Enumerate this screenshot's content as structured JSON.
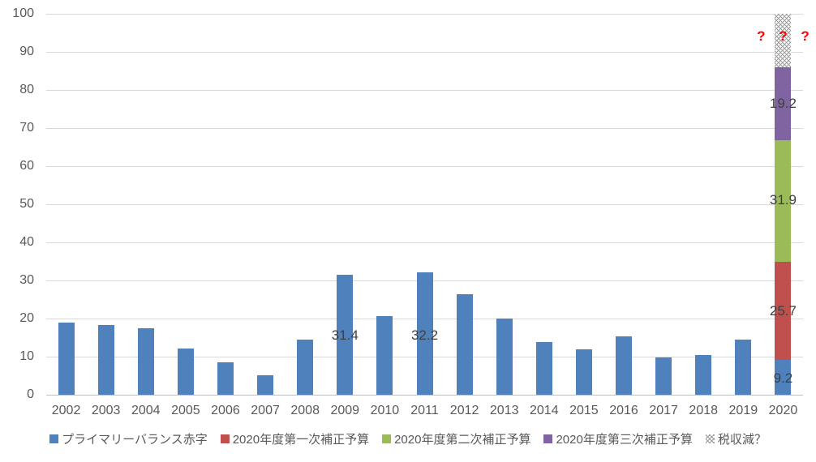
{
  "chart_data": {
    "type": "bar",
    "stacked": true,
    "title": "",
    "xlabel": "",
    "ylabel": "",
    "categories": [
      "2002",
      "2003",
      "2004",
      "2005",
      "2006",
      "2007",
      "2008",
      "2009",
      "2010",
      "2011",
      "2012",
      "2013",
      "2014",
      "2015",
      "2016",
      "2017",
      "2018",
      "2019",
      "2020"
    ],
    "series": [
      {
        "name": "プライマリーバランス赤字",
        "color": "#4F81BD",
        "values": [
          19.0,
          18.2,
          17.4,
          12.2,
          8.6,
          5.2,
          14.5,
          31.4,
          20.6,
          32.2,
          26.3,
          20.0,
          13.9,
          12.0,
          15.3,
          9.8,
          10.5,
          14.5,
          9.2
        ]
      },
      {
        "name": "2020年度第一次補正予算",
        "color": "#C0504D",
        "values": [
          0,
          0,
          0,
          0,
          0,
          0,
          0,
          0,
          0,
          0,
          0,
          0,
          0,
          0,
          0,
          0,
          0,
          0,
          25.7
        ]
      },
      {
        "name": "2020年度第二次補正予算",
        "color": "#9BBB59",
        "values": [
          0,
          0,
          0,
          0,
          0,
          0,
          0,
          0,
          0,
          0,
          0,
          0,
          0,
          0,
          0,
          0,
          0,
          0,
          31.9
        ]
      },
      {
        "name": "2020年度第三次補正予算",
        "color": "#8064A2",
        "values": [
          0,
          0,
          0,
          0,
          0,
          0,
          0,
          0,
          0,
          0,
          0,
          0,
          0,
          0,
          0,
          0,
          0,
          0,
          19.2
        ]
      },
      {
        "name": "税収減？",
        "color": "hatch",
        "values": [
          0,
          0,
          0,
          0,
          0,
          0,
          0,
          0,
          0,
          0,
          0,
          0,
          0,
          0,
          0,
          0,
          0,
          0,
          14.0
        ]
      }
    ],
    "data_labels": [
      {
        "category": "2009",
        "text": "31.4",
        "y_value": 15.5
      },
      {
        "category": "2011",
        "text": "32.2",
        "y_value": 15.5
      },
      {
        "category": "2020",
        "text": "9.2",
        "y_value": 4.3
      },
      {
        "category": "2020",
        "text": "25.7",
        "y_value": 22.0
      },
      {
        "category": "2020",
        "text": "31.9",
        "y_value": 51.0
      },
      {
        "category": "2020",
        "text": "19.2",
        "y_value": 76.3
      }
    ],
    "annotation": {
      "text": "? ? ?",
      "color": "#FF0000",
      "category": "2020",
      "y_value": 94
    },
    "ylim": [
      0,
      100
    ],
    "yticks": [
      0,
      10,
      20,
      30,
      40,
      50,
      60,
      70,
      80,
      90,
      100
    ],
    "grid": true,
    "legend_position": "bottom",
    "style_colors": {
      "gridline": "#d9d9d9",
      "axis_line": "#bfbfbf",
      "tick_text": "#595959",
      "label_text": "#3f3f3f"
    }
  }
}
